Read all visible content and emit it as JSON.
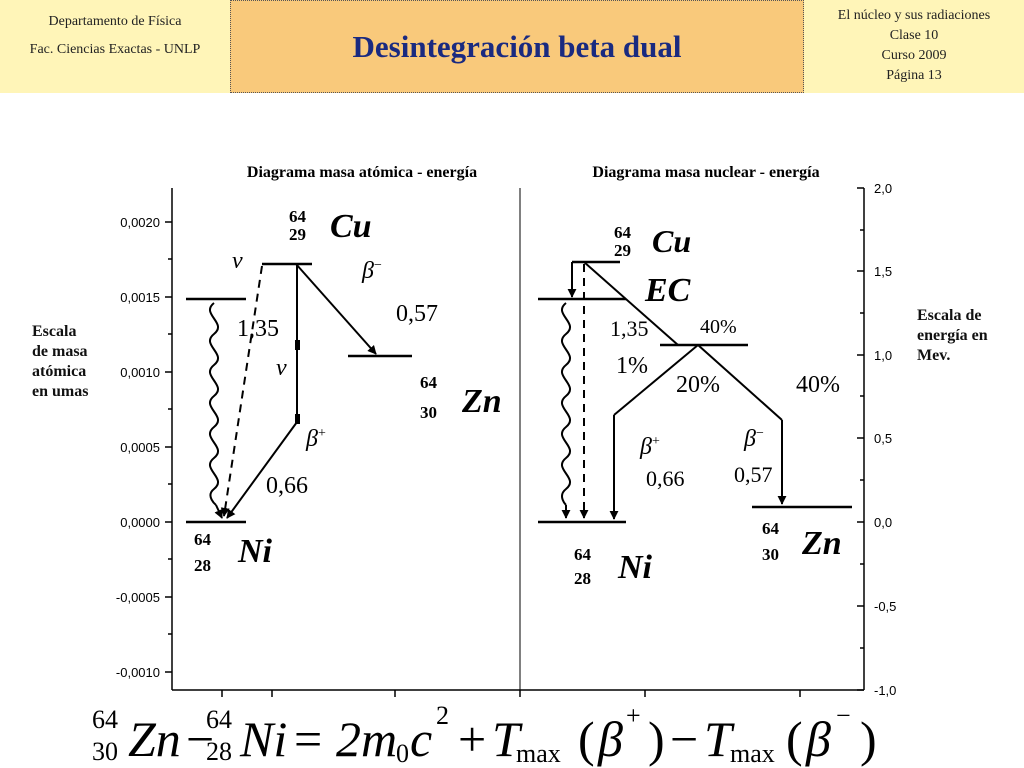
{
  "header": {
    "left_line1": "Departamento de Física",
    "left_line2": "Fac. Ciencias Exactas - UNLP",
    "title": "Desintegración  beta dual",
    "right_line1": "El núcleo y sus radiaciones",
    "right_line2": "Clase 10",
    "right_line3": "Curso 2009",
    "right_line4": "Página 13"
  },
  "left_panel": {
    "title": "Diagrama masa atómica - energía",
    "axis_label_lines": [
      "Escala",
      "de masa",
      "atómica",
      "en umas"
    ],
    "ticks": [
      "0,0020",
      "0,0015",
      "0,0010",
      "0,0005",
      "0,0000",
      "-0,0005",
      "-0,0010"
    ],
    "cu_mass": "64",
    "cu_z": "29",
    "cu_sym": "Cu",
    "zn_mass": "64",
    "zn_z": "30",
    "zn_sym": "Zn",
    "ni_mass": "64",
    "ni_z": "28",
    "ni_sym": "Ni",
    "nu_top": "ν",
    "nu_mid": "ν",
    "beta_minus_base": "β",
    "beta_minus_sign": "−",
    "beta_plus_base": "β",
    "beta_plus_sign": "+",
    "e_gamma": "1,35",
    "e_beta_minus": "0,57",
    "e_beta_plus": "0,66"
  },
  "right_panel": {
    "title": "Diagrama masa nuclear - energía",
    "axis_label_lines": [
      "Escala de",
      "energía en",
      "Mev."
    ],
    "ticks": [
      "2,0",
      "1,5",
      "1,0",
      "0,5",
      "0,0",
      "-0,5",
      "-1,0"
    ],
    "cu_mass": "64",
    "cu_z": "29",
    "cu_sym": "Cu",
    "ni_mass": "64",
    "ni_z": "28",
    "ni_sym": "Ni",
    "zn_mass": "64",
    "zn_z": "30",
    "zn_sym": "Zn",
    "ec": "EC",
    "e_gamma": "1,35",
    "pct_ec": "1%",
    "pct_40_ec": "40%",
    "pct_20": "20%",
    "pct_40": "40%",
    "beta_plus_base": "β",
    "beta_plus_sign": "+",
    "beta_minus_base": "β",
    "beta_minus_sign": "−",
    "e_beta_plus": "0,66",
    "e_beta_minus": "0,57"
  },
  "equation": {
    "zn_mass": "64",
    "zn_z": "30",
    "zn": "Zn",
    "minus": "−",
    "ni_mass": "64",
    "ni_z": "28",
    "ni": "Ni",
    "equals": "=",
    "two_m": "2m",
    "m_sub": "0",
    "c": "c",
    "c_exp": "2",
    "plus": "+",
    "t1": "T",
    "t1_sub": "max",
    "paren1_open": "(",
    "beta1": "β",
    "beta1_sign": "+",
    "paren1_close": ")",
    "minus2": "−",
    "t2": "T",
    "t2_sub": "max",
    "paren2_open": "(",
    "beta2": "β",
    "beta2_sign": "−",
    "paren2_close": ")"
  },
  "colors": {
    "header_left": "#fff5b8",
    "header_center": "#f9c97b",
    "title": "#1a2a80"
  }
}
